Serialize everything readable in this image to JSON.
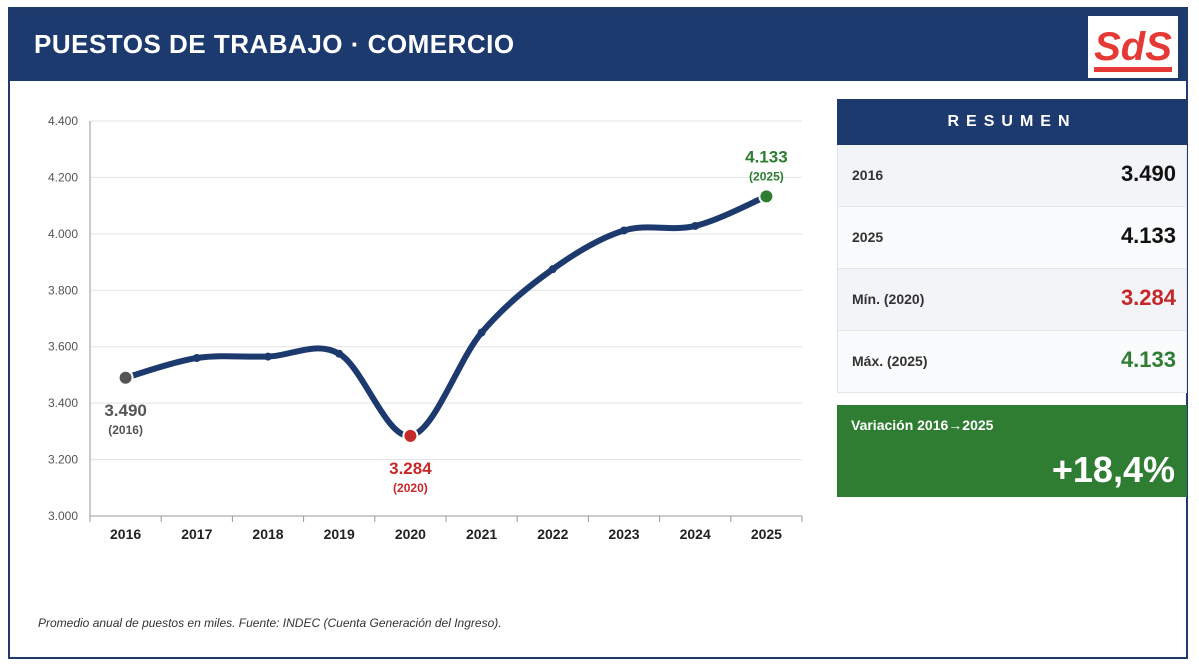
{
  "header": {
    "title": "PUESTOS DE TRABAJO · COMERCIO",
    "logo_text": "SdS"
  },
  "colors": {
    "navy": "#1d3a6e",
    "red": "#c62828",
    "green": "#2e7d32",
    "gray": "#555555",
    "logo_red": "#e53935"
  },
  "chart_data": {
    "type": "line",
    "title": "PUESTOS DE TRABAJO · COMERCIO",
    "categories": [
      "2016",
      "2017",
      "2018",
      "2019",
      "2020",
      "2021",
      "2022",
      "2023",
      "2024",
      "2025"
    ],
    "values": [
      3490,
      3560,
      3565,
      3575,
      3284,
      3650,
      3875,
      4012,
      4028,
      4133
    ],
    "ylim": [
      3000,
      4400
    ],
    "yticks": [
      "3.000",
      "3.200",
      "3.400",
      "3.600",
      "3.800",
      "4.000",
      "4.200",
      "4.400"
    ],
    "ytick_values": [
      3000,
      3200,
      3400,
      3600,
      3800,
      4000,
      4200,
      4400
    ],
    "grid": true,
    "annotations": [
      {
        "index": 0,
        "value": "3.490",
        "year": "(2016)",
        "color": "#555555"
      },
      {
        "index": 4,
        "value": "3.284",
        "year": "(2020)",
        "color": "#c62828"
      },
      {
        "index": 9,
        "value": "4.133",
        "year": "(2025)",
        "color": "#2e7d32"
      }
    ]
  },
  "summary": {
    "title": "RESUMEN",
    "rows": [
      {
        "label": "2016",
        "value": "3.490",
        "color": "#111111"
      },
      {
        "label": "2025",
        "value": "4.133",
        "color": "#111111"
      },
      {
        "label": "Mín. (2020)",
        "value": "3.284",
        "color": "#c62828"
      },
      {
        "label": "Máx. (2025)",
        "value": "4.133",
        "color": "#2e7d32"
      }
    ],
    "variation_label": "Variación 2016→2025",
    "variation_value": "+18,4%"
  },
  "footnote": "Promedio anual de puestos en miles. Fuente: INDEC (Cuenta Generación del Ingreso)."
}
